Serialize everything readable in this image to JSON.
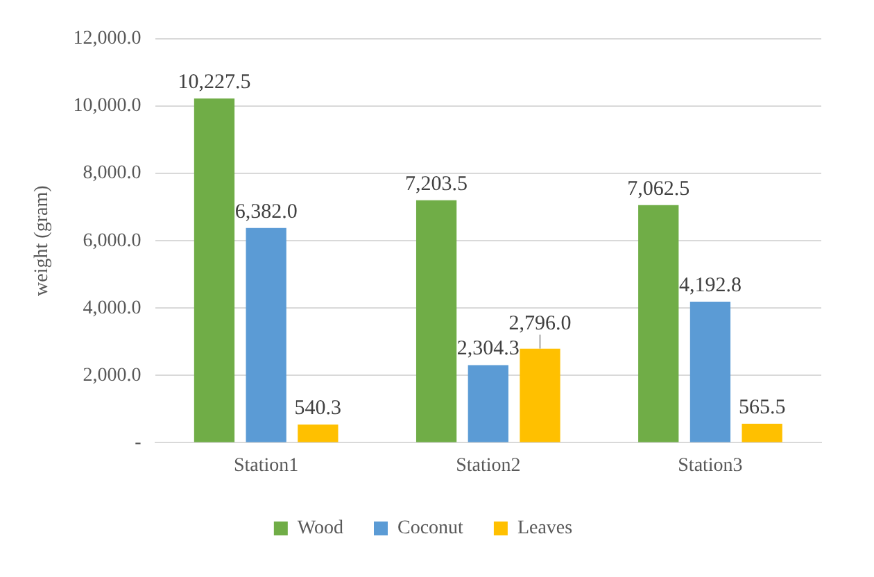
{
  "chart_data": {
    "type": "bar",
    "ylabel": "weight (gram)",
    "categories": [
      "Station1",
      "Station2",
      "Station3"
    ],
    "series": [
      {
        "name": "Wood",
        "color": "#70ad47",
        "values": [
          10227.5,
          7203.5,
          7062.5
        ],
        "value_labels": [
          "10,227.5",
          "7,203.5",
          "7,062.5"
        ]
      },
      {
        "name": "Coconut",
        "color": "#5b9bd5",
        "values": [
          6382.0,
          2304.3,
          4192.8
        ],
        "value_labels": [
          "6,382.0",
          "2,304.3",
          "4,192.8"
        ]
      },
      {
        "name": "Leaves",
        "color": "#ffc000",
        "values": [
          540.3,
          2796.0,
          565.5
        ],
        "value_labels": [
          "540.3",
          "2,796.0",
          "565.5"
        ]
      }
    ],
    "ylim": [
      0,
      12000
    ],
    "yticks": [
      {
        "value": 0,
        "label": "-"
      },
      {
        "value": 2000,
        "label": "2,000.0"
      },
      {
        "value": 4000,
        "label": "4,000.0"
      },
      {
        "value": 6000,
        "label": "6,000.0"
      },
      {
        "value": 8000,
        "label": "8,000.0"
      },
      {
        "value": 10000,
        "label": "10,000.0"
      },
      {
        "value": 12000,
        "label": "12,000.0"
      }
    ],
    "grid": "y",
    "legend": "bottom"
  }
}
